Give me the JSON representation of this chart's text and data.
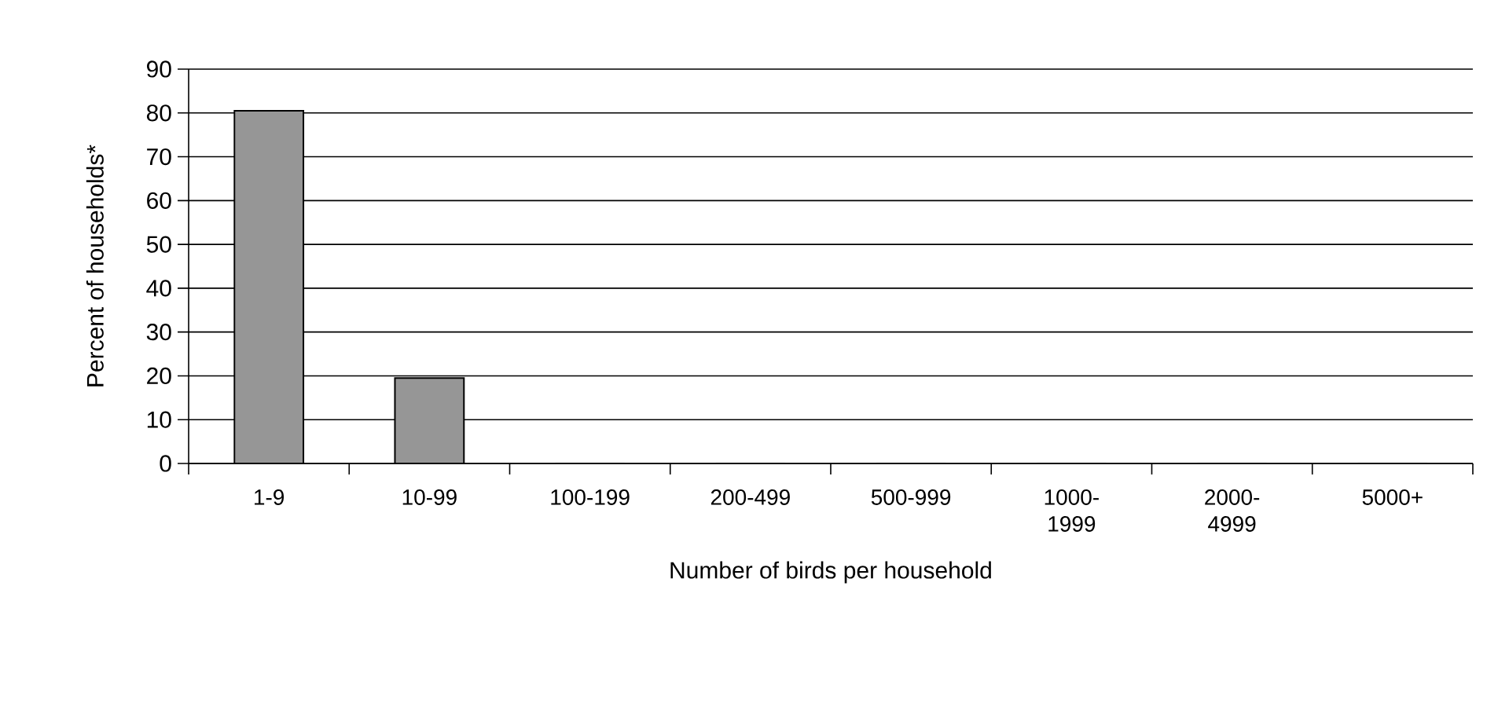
{
  "chart_data": {
    "type": "bar",
    "xlabel": "Number of birds per household",
    "ylabel": "Percent of households*",
    "categories": [
      "1-9",
      "10-99",
      "100-199",
      "200-499",
      "500-999",
      "1000-1999",
      "2000-4999",
      "5000+"
    ],
    "values": [
      80.5,
      19.5,
      0,
      0,
      0,
      0,
      0,
      0
    ],
    "color": "#969696",
    "ylim": [
      0,
      90
    ],
    "yticks": [
      0,
      10,
      20,
      30,
      40,
      50,
      60,
      70,
      80,
      90
    ],
    "grid": "y"
  }
}
